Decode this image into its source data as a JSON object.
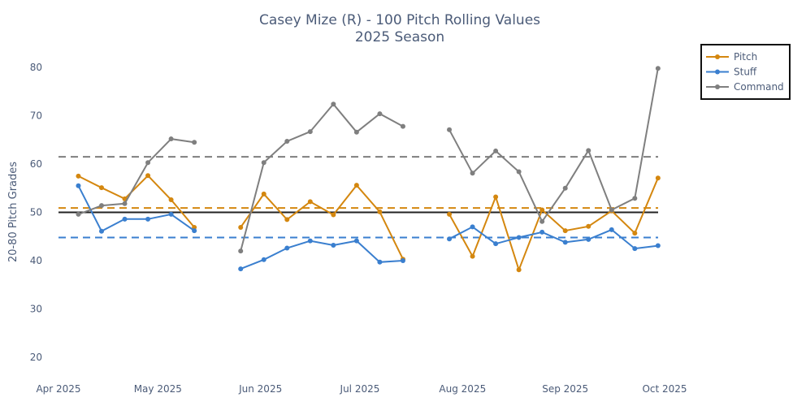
{
  "chart_data": {
    "type": "line",
    "title": "Casey Mize (R) - 100 Pitch Rolling Values",
    "subtitle": "2025 Season",
    "xlabel": "",
    "ylabel": "20-80 Pitch Grades",
    "ylim": [
      15,
      83
    ],
    "xlim": [
      "2025-03-27",
      "2025-10-06"
    ],
    "yticks": [
      20,
      30,
      40,
      50,
      60,
      70,
      80
    ],
    "xticks": [
      {
        "date": "2025-04-01",
        "label": "Apr 2025"
      },
      {
        "date": "2025-05-01",
        "label": "May 2025"
      },
      {
        "date": "2025-06-01",
        "label": "Jun 2025"
      },
      {
        "date": "2025-07-01",
        "label": "Jul 2025"
      },
      {
        "date": "2025-08-01",
        "label": "Aug 2025"
      },
      {
        "date": "2025-09-01",
        "label": "Sep 2025"
      },
      {
        "date": "2025-10-01",
        "label": "Oct 2025"
      }
    ],
    "grid": false,
    "legend_position": "top-right",
    "x": [
      "2025-04-07",
      "2025-04-14",
      "2025-04-21",
      "2025-04-28",
      "2025-05-05",
      "2025-05-12",
      "2025-05-26",
      "2025-06-02",
      "2025-06-09",
      "2025-06-16",
      "2025-06-23",
      "2025-06-30",
      "2025-07-07",
      "2025-07-14",
      "2025-07-28",
      "2025-08-04",
      "2025-08-11",
      "2025-08-18",
      "2025-08-25",
      "2025-09-01",
      "2025-09-08",
      "2025-09-15",
      "2025-09-22",
      "2025-09-29"
    ],
    "segments": [
      [
        0,
        5
      ],
      [
        6,
        13
      ],
      [
        14,
        23
      ]
    ],
    "series": [
      {
        "name": "Pitch",
        "color": "#D4870F",
        "values": [
          57.5,
          55.1,
          52.8,
          57.6,
          52.6,
          46.9,
          46.9,
          53.8,
          48.5,
          52.2,
          49.5,
          55.6,
          50.1,
          40.3,
          49.6,
          40.9,
          53.2,
          38.1,
          50.5,
          46.2,
          47.1,
          50.3,
          45.7,
          57.1
        ]
      },
      {
        "name": "Stuff",
        "color": "#3A7FCF",
        "values": [
          55.5,
          46.1,
          48.6,
          48.6,
          49.6,
          46.2,
          38.3,
          40.2,
          42.6,
          44.1,
          43.2,
          44.1,
          39.7,
          40.0,
          44.5,
          47.0,
          43.5,
          44.8,
          45.9,
          43.8,
          44.4,
          46.4,
          42.5,
          43.1
        ]
      },
      {
        "name": "Command",
        "color": "#7F7F7F",
        "values": [
          49.6,
          51.4,
          51.8,
          60.3,
          65.2,
          64.5,
          42.0,
          60.3,
          64.7,
          66.7,
          72.4,
          66.6,
          70.4,
          67.8,
          67.1,
          58.1,
          62.7,
          58.4,
          48.1,
          55.0,
          62.8,
          50.5,
          52.9,
          79.8
        ]
      }
    ],
    "reference_lines": [
      {
        "value": 50,
        "color": "#222222",
        "style": "solid"
      },
      {
        "value": 61.5,
        "color": "#7F7F7F",
        "style": "dashed"
      },
      {
        "value": 50.9,
        "color": "#D4870F",
        "style": "dashed"
      },
      {
        "value": 44.8,
        "color": "#3A7FCF",
        "style": "dashed"
      }
    ]
  }
}
